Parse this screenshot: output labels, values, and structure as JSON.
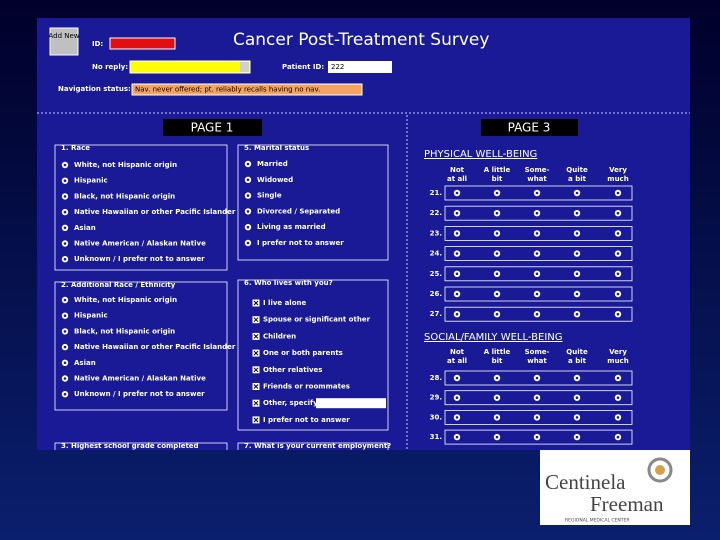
{
  "header": {
    "button": "Add New",
    "id_label": "ID:",
    "title": "Cancer Post-Treatment Survey",
    "no_reply_label": "No reply:",
    "patient_id_label": "Patient ID:",
    "patient_id": "222",
    "nav_label": "Navigation status:",
    "nav_value": "Nav. never offered; pt. reliably recalls having no nav."
  },
  "pages": [
    "PAGE 1",
    "PAGE 3"
  ],
  "left_sections": [
    {
      "title": "1. Race",
      "options": [
        "White, not Hispanic origin",
        "Hispanic",
        "Black, not Hispanic origin",
        "Native Hawaiian or other Pacific Islander",
        "Asian",
        "Native American / Alaskan Native",
        "Unknown / I prefer not to answer"
      ]
    },
    {
      "title": "2. Additional Race / Ethnicity",
      "options": [
        "White, not Hispanic origin",
        "Hispanic",
        "Black, not Hispanic origin",
        "Native Hawaiian or other Pacific Islander",
        "Asian",
        "Native American / Alaskan Native",
        "Unknown / I prefer not to answer"
      ]
    },
    {
      "title": "3. Highest school grade completed",
      "options": []
    }
  ],
  "mid_sections": [
    {
      "title": "5. Marital status",
      "options": [
        "Married",
        "Widowed",
        "Single",
        "Divorced / Separated",
        "Living as married",
        "I prefer not to answer"
      ]
    },
    {
      "title": "6. Who lives with you?",
      "options": [
        "I live alone",
        "Spouse or significant other",
        "Children",
        "One or both parents",
        "Other relatives",
        "Friends or roommates",
        "Other, specify",
        "I prefer not to answer"
      ]
    },
    {
      "title": "7. What is your current employment?",
      "options": []
    }
  ],
  "scales": [
    {
      "title": "PHYSICAL WELL-BEING",
      "columns": [
        [
          "Not",
          "at all"
        ],
        [
          "A little",
          "bit"
        ],
        [
          "Some-",
          "what"
        ],
        [
          "Quite",
          "a bit"
        ],
        [
          "Very",
          "much"
        ]
      ],
      "rows": [
        "21.",
        "22.",
        "23.",
        "24.",
        "25.",
        "26.",
        "27."
      ]
    },
    {
      "title": "SOCIAL/FAMILY WELL-BEING",
      "columns": [
        [
          "Not",
          "at all"
        ],
        [
          "A little",
          "bit"
        ],
        [
          "Some-",
          "what"
        ],
        [
          "Quite",
          "a bit"
        ],
        [
          "Very",
          "much"
        ]
      ],
      "rows": [
        "28.",
        "29.",
        "30.",
        "31."
      ]
    }
  ],
  "logo": {
    "name1": "Centinela",
    "name2": "Freeman",
    "tagline": "REGIONAL MEDICAL CENTER"
  }
}
